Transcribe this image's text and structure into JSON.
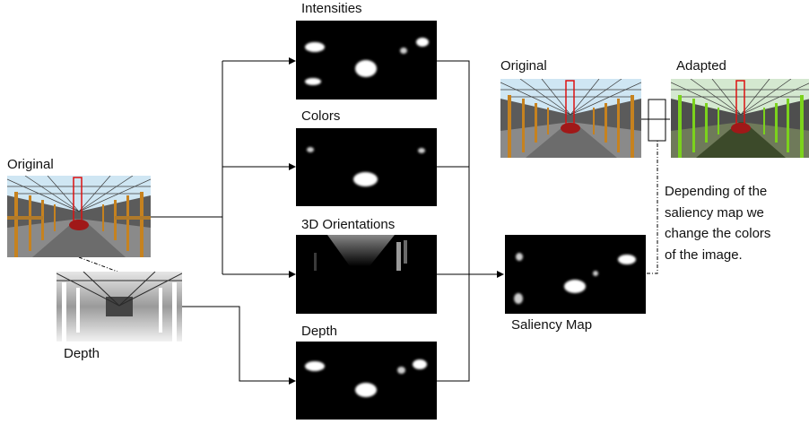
{
  "labels": {
    "original_left": "Original",
    "depth_input": "Depth",
    "intensities": "Intensities",
    "colors": "Colors",
    "orientations": "3D Orientations",
    "depth_map": "Depth",
    "saliency": "Saliency Map",
    "original_right": "Original",
    "adapted": "Adapted"
  },
  "note": [
    "Depending of the",
    "saliency map we",
    "change the colors",
    " of  the image."
  ]
}
